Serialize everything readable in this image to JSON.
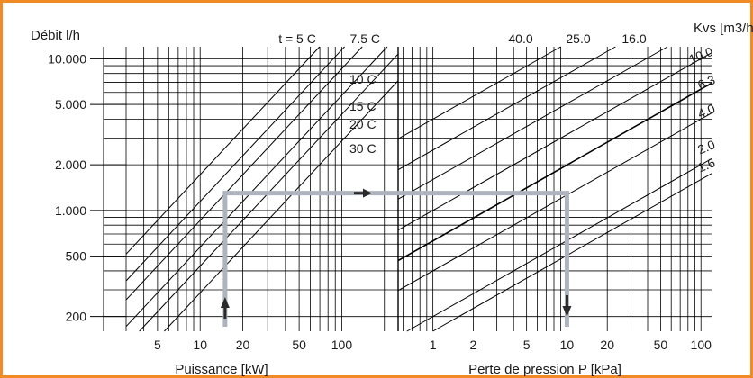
{
  "colors": {
    "frame": "#f08a24",
    "grid": "#000000",
    "example_path": "#aeb4bf",
    "arrow": "#2a2a2a"
  },
  "chart_data": {
    "type": "line",
    "title": "",
    "ylabel": "Débit l/h",
    "right_title": "Kvs [m3/h]",
    "y_scale": "log",
    "y_range": [
      160,
      12000
    ],
    "y_ticks": [
      {
        "value": 10000,
        "label": "10.000"
      },
      {
        "value": 5000,
        "label": "5.000"
      },
      {
        "value": 2000,
        "label": "2.000"
      },
      {
        "value": 1000,
        "label": "1.000"
      },
      {
        "value": 500,
        "label": "500"
      },
      {
        "value": 200,
        "label": "200"
      }
    ],
    "left_panel": {
      "xlabel": "Puissance [kW]",
      "x_scale": "log",
      "x_range": [
        3,
        250
      ],
      "x_ticks": [
        {
          "value": 5,
          "label": "5"
        },
        {
          "value": 10,
          "label": "10"
        },
        {
          "value": 20,
          "label": "20"
        },
        {
          "value": 50,
          "label": "50"
        },
        {
          "value": 100,
          "label": "100"
        }
      ],
      "series": [
        {
          "name": "t = 5 C",
          "delta_t": 5
        },
        {
          "name": "7.5 C",
          "delta_t": 7.5
        },
        {
          "name": "10 C",
          "delta_t": 10
        },
        {
          "name": "15 C",
          "delta_t": 15
        },
        {
          "name": "20 C",
          "delta_t": 20
        },
        {
          "name": "30 C",
          "delta_t": 30
        }
      ]
    },
    "right_panel": {
      "xlabel": "Perte de pression P [kPa]",
      "x_scale": "log",
      "x_range": [
        0.55,
        120
      ],
      "x_ticks": [
        {
          "value": 1,
          "label": "1"
        },
        {
          "value": 2,
          "label": "2"
        },
        {
          "value": 5,
          "label": "5"
        },
        {
          "value": 10,
          "label": "10"
        },
        {
          "value": 20,
          "label": "20"
        },
        {
          "value": 50,
          "label": "50"
        },
        {
          "value": 100,
          "label": "100"
        }
      ],
      "series": [
        {
          "name": "40.0",
          "kvs": 40.0
        },
        {
          "name": "25.0",
          "kvs": 25.0
        },
        {
          "name": "16.0",
          "kvs": 16.0
        },
        {
          "name": "10.0",
          "kvs": 10.0
        },
        {
          "name": "6.3",
          "kvs": 6.3
        },
        {
          "name": "4.0",
          "kvs": 4.0
        },
        {
          "name": "2.0",
          "kvs": 2.0
        },
        {
          "name": "1.6",
          "kvs": 1.6
        }
      ]
    },
    "example": {
      "power_kw": 15,
      "flow_lh": 1300,
      "pressure_kpa": 10
    },
    "grid": true,
    "legend": "none"
  }
}
